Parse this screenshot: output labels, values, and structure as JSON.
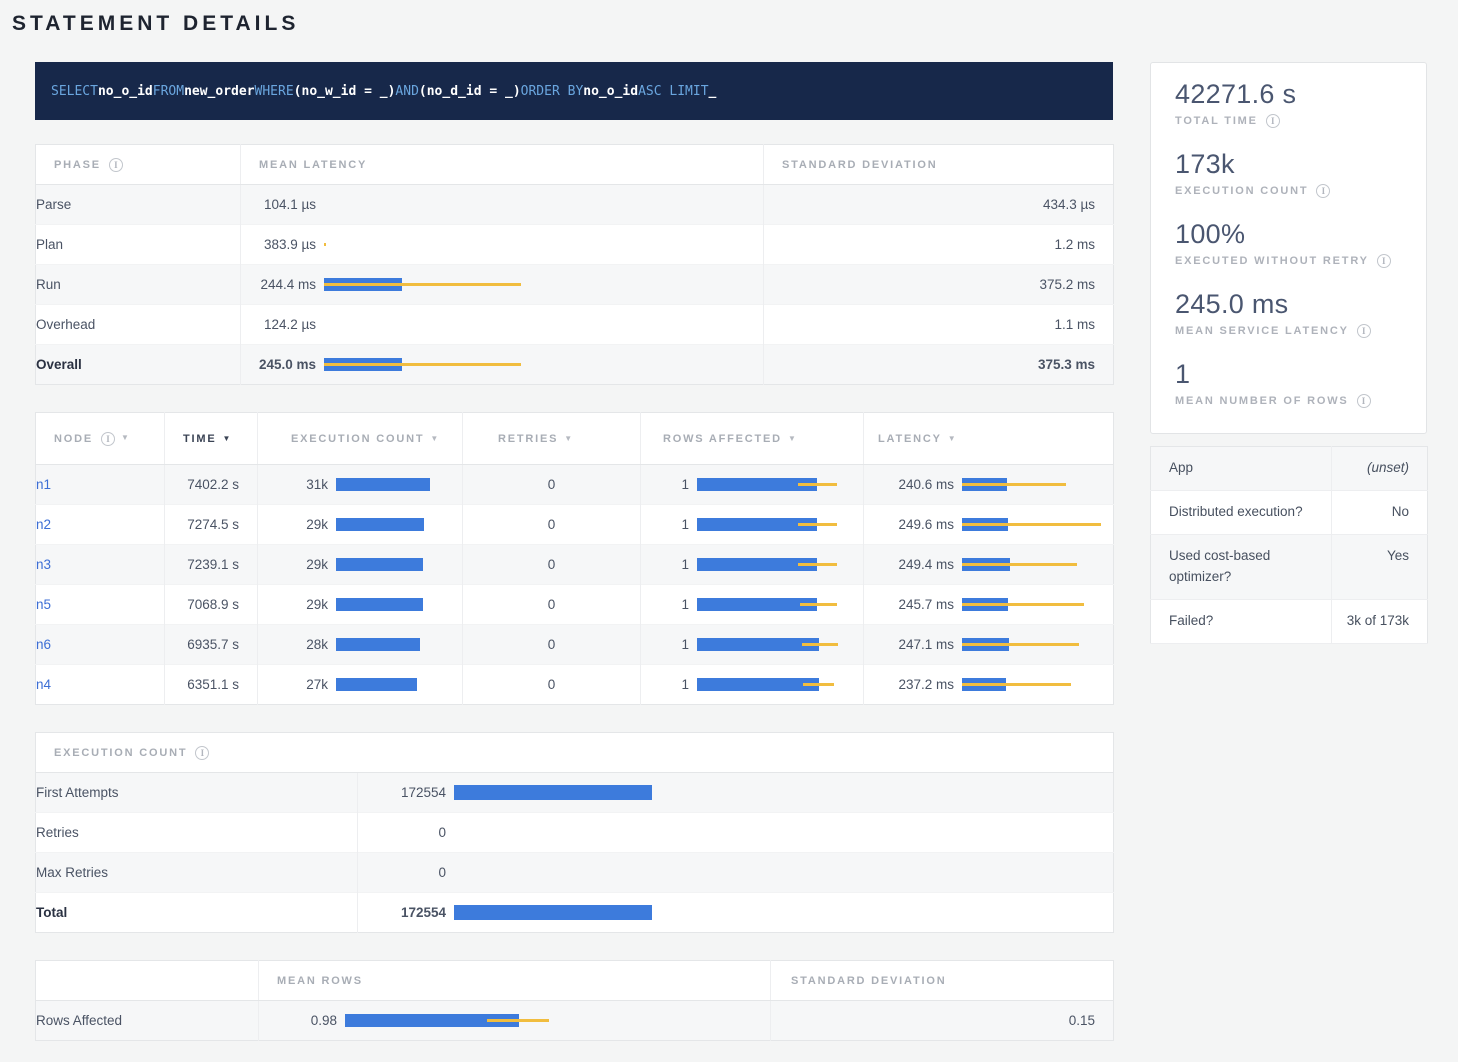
{
  "page": {
    "title": "STATEMENT DETAILS"
  },
  "colors": {
    "bar_blue": "#3D7BDC",
    "bar_yellow": "#F1BD3F",
    "sql_background": "#17284A",
    "sql_keyword": "#6AA6DF",
    "node_link": "#3C6ED5"
  },
  "sql": {
    "tokens": [
      {
        "text": "SELECT",
        "type": "keyword"
      },
      {
        "text": "no_o_id",
        "type": "identifier"
      },
      {
        "text": "FROM",
        "type": "keyword"
      },
      {
        "text": "new_order",
        "type": "identifier"
      },
      {
        "text": "WHERE",
        "type": "keyword"
      },
      {
        "text": "(no_w_id = _)",
        "type": "identifier"
      },
      {
        "text": "AND",
        "type": "keyword"
      },
      {
        "text": "(no_d_id = _)",
        "type": "identifier"
      },
      {
        "text": "ORDER BY",
        "type": "keyword"
      },
      {
        "text": "no_o_id",
        "type": "identifier"
      },
      {
        "text": "ASC LIMIT",
        "type": "keyword"
      },
      {
        "text": "_",
        "type": "identifier"
      }
    ]
  },
  "phase_table": {
    "headers": [
      "PHASE",
      "MEAN LATENCY",
      "STANDARD DEVIATION"
    ],
    "rows": [
      {
        "phase": "Parse",
        "mean": "104.1 µs",
        "bar": null,
        "stddev": "434.3 µs",
        "emphasis": false
      },
      {
        "phase": "Plan",
        "mean": "383.9 µs",
        "bar": {
          "mean": 0,
          "dev": [
            0,
            2
          ]
        },
        "stddev": "1.2 ms",
        "emphasis": false
      },
      {
        "phase": "Run",
        "mean": "244.4 ms",
        "bar": {
          "mean": 78,
          "dev": [
            0,
            197
          ]
        },
        "stddev": "375.2 ms",
        "emphasis": false
      },
      {
        "phase": "Overhead",
        "mean": "124.2 µs",
        "bar": null,
        "stddev": "1.1 ms",
        "emphasis": false
      },
      {
        "phase": "Overall",
        "mean": "245.0 ms",
        "bar": {
          "mean": 78,
          "dev": [
            0,
            197
          ]
        },
        "stddev": "375.3 ms",
        "emphasis": true
      }
    ]
  },
  "node_table": {
    "headers": [
      "NODE",
      "TIME",
      "EXECUTION COUNT",
      "RETRIES",
      "ROWS AFFECTED",
      "LATENCY"
    ],
    "sorted_by": "TIME",
    "rows": [
      {
        "node": "n1",
        "time": "7402.2 s",
        "exec_count": "31k",
        "exec_bar": {
          "mean": 94
        },
        "retries": "0",
        "rows_affected": "1",
        "rows_bar": {
          "mean": 120,
          "dev": [
            101,
            140
          ]
        },
        "latency": "240.6 ms",
        "latency_bar": {
          "mean": 45,
          "dev": [
            0,
            104
          ]
        }
      },
      {
        "node": "n2",
        "time": "7274.5 s",
        "exec_count": "29k",
        "exec_bar": {
          "mean": 88
        },
        "retries": "0",
        "rows_affected": "1",
        "rows_bar": {
          "mean": 120,
          "dev": [
            101,
            140
          ]
        },
        "latency": "249.6 ms",
        "latency_bar": {
          "mean": 46,
          "dev": [
            0,
            139
          ]
        }
      },
      {
        "node": "n3",
        "time": "7239.1 s",
        "exec_count": "29k",
        "exec_bar": {
          "mean": 87
        },
        "retries": "0",
        "rows_affected": "1",
        "rows_bar": {
          "mean": 120,
          "dev": [
            101,
            140
          ]
        },
        "latency": "249.4 ms",
        "latency_bar": {
          "mean": 48,
          "dev": [
            0,
            115
          ]
        }
      },
      {
        "node": "n5",
        "time": "7068.9 s",
        "exec_count": "29k",
        "exec_bar": {
          "mean": 87
        },
        "retries": "0",
        "rows_affected": "1",
        "rows_bar": {
          "mean": 120,
          "dev": [
            103,
            140
          ]
        },
        "latency": "245.7 ms",
        "latency_bar": {
          "mean": 46,
          "dev": [
            0,
            122
          ]
        }
      },
      {
        "node": "n6",
        "time": "6935.7 s",
        "exec_count": "28k",
        "exec_bar": {
          "mean": 84
        },
        "retries": "0",
        "rows_affected": "1",
        "rows_bar": {
          "mean": 122,
          "dev": [
            105,
            141
          ]
        },
        "latency": "247.1 ms",
        "latency_bar": {
          "mean": 47,
          "dev": [
            0,
            117
          ]
        }
      },
      {
        "node": "n4",
        "time": "6351.1 s",
        "exec_count": "27k",
        "exec_bar": {
          "mean": 81
        },
        "retries": "0",
        "rows_affected": "1",
        "rows_bar": {
          "mean": 122,
          "dev": [
            106,
            137
          ]
        },
        "latency": "237.2 ms",
        "latency_bar": {
          "mean": 44,
          "dev": [
            0,
            109
          ]
        }
      }
    ]
  },
  "execution_count_table": {
    "title": "EXECUTION COUNT",
    "rows": [
      {
        "label": "First Attempts",
        "value": "172554",
        "bar": {
          "mean": 198
        },
        "emphasis": false
      },
      {
        "label": "Retries",
        "value": "0",
        "bar": null,
        "emphasis": false
      },
      {
        "label": "Max Retries",
        "value": "0",
        "bar": null,
        "emphasis": false
      },
      {
        "label": "Total",
        "value": "172554",
        "bar": {
          "mean": 198
        },
        "emphasis": true
      }
    ]
  },
  "rows_affected_table": {
    "headers": [
      "",
      "MEAN ROWS",
      "STANDARD DEVIATION"
    ],
    "rows": [
      {
        "label": "Rows Affected",
        "mean": "0.98",
        "bar": {
          "mean": 174,
          "dev": [
            142,
            204
          ]
        },
        "stddev": "0.15"
      }
    ]
  },
  "summary_stats": [
    {
      "value": "42271.6 s",
      "label": "TOTAL TIME"
    },
    {
      "value": "173k",
      "label": "EXECUTION COUNT"
    },
    {
      "value": "100%",
      "label": "EXECUTED WITHOUT RETRY"
    },
    {
      "value": "245.0 ms",
      "label": "MEAN SERVICE LATENCY"
    },
    {
      "value": "1",
      "label": "MEAN NUMBER OF ROWS"
    }
  ],
  "details_table": [
    {
      "label": "App",
      "value": "(unset)",
      "italic": true
    },
    {
      "label": "Distributed execution?",
      "value": "No",
      "italic": false
    },
    {
      "label": "Used cost-based optimizer?",
      "value": "Yes",
      "italic": false
    },
    {
      "label": "Failed?",
      "value": "3k of 173k",
      "italic": false
    }
  ]
}
